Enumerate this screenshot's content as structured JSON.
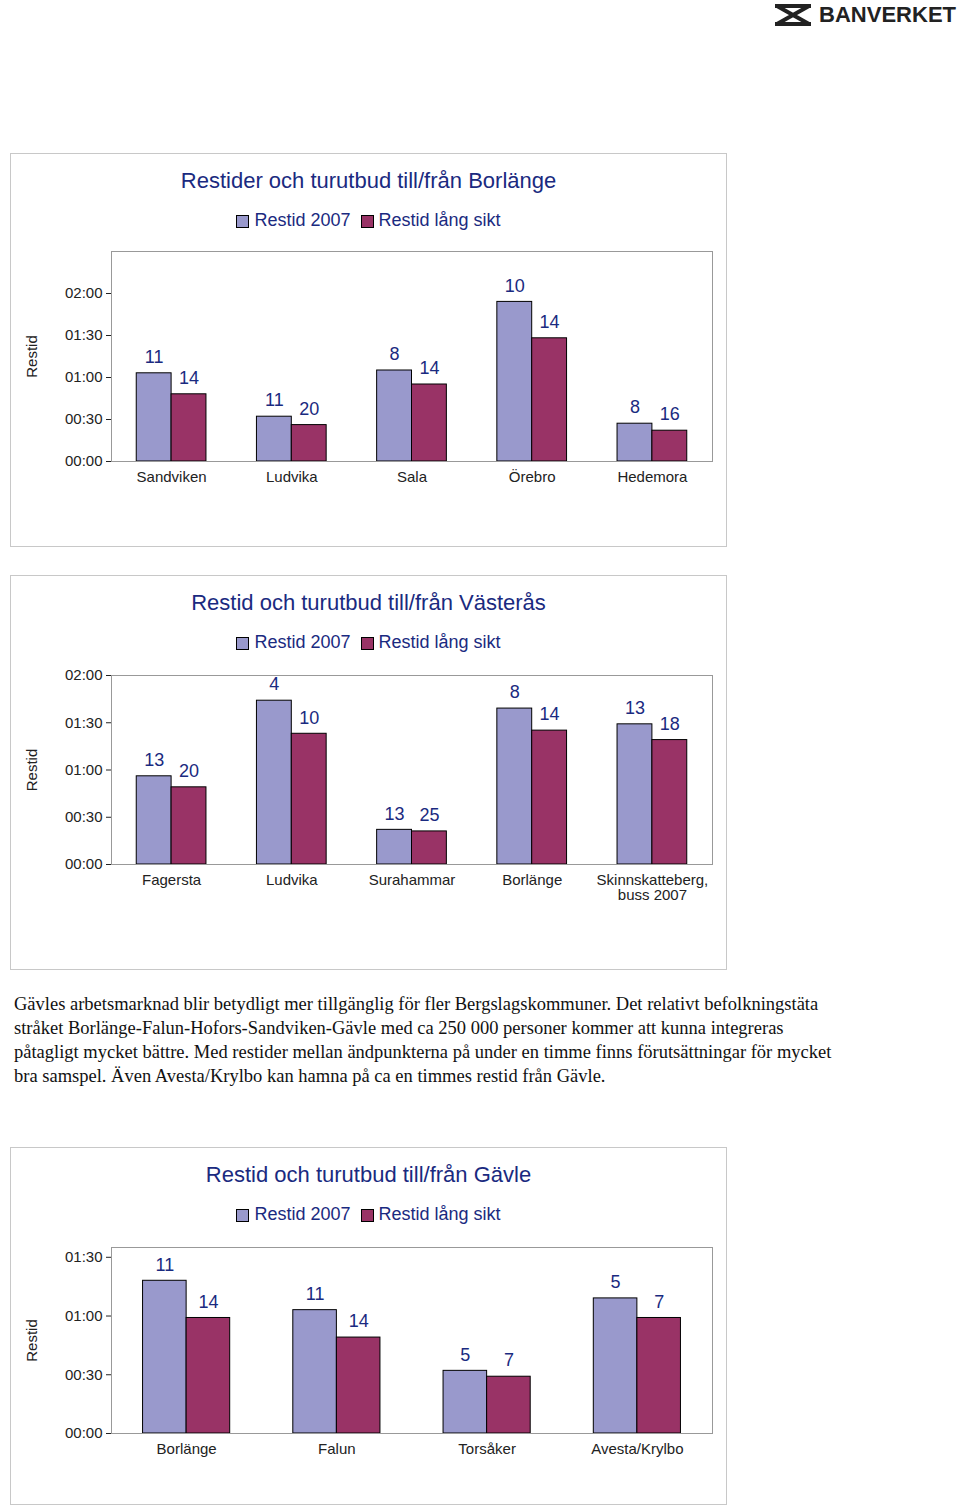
{
  "logo": "BANVERKET",
  "paragraph": "Gävles arbetsmarknad blir betydligt mer tillgänglig för fler Bergslagskommuner. Det relativt befolkningstäta stråket Borlänge-Falun-Hofors-Sandviken-Gävle med ca 250 000 personer kommer att kunna integreras påtagligt mycket bättre. Med restider mellan ändpunkterna på under en timme finns förutsättningar för mycket bra samspel. Även Avesta/Krylbo kan hamna på ca en timmes restid från Gävle.",
  "chart_data": [
    {
      "type": "bar",
      "title": "Restider och turutbud till/från Borlänge",
      "y_label": "Restid",
      "categories": [
        "Sandviken",
        "Ludvika",
        "Sala",
        "Örebro",
        "Hedemora"
      ],
      "series": [
        {
          "name": "Restid 2007",
          "color": "#9999cc",
          "values": [
            63,
            32,
            65,
            114,
            27
          ],
          "turutbud": [
            11,
            11,
            8,
            10,
            8
          ]
        },
        {
          "name": "Restid lång sikt",
          "color": "#993366",
          "values": [
            48,
            26,
            55,
            88,
            22
          ],
          "turutbud": [
            14,
            20,
            14,
            14,
            16
          ]
        }
      ],
      "ylim": [
        0,
        150
      ],
      "yticks": [
        {
          "value": 0,
          "label": "00:00"
        },
        {
          "value": 30,
          "label": "00:30"
        },
        {
          "value": 60,
          "label": "01:00"
        },
        {
          "value": 90,
          "label": "01:30"
        },
        {
          "value": 120,
          "label": "02:00"
        }
      ],
      "grid": false,
      "legend": "top"
    },
    {
      "type": "bar",
      "title": "Restid och turutbud till/från Västerås",
      "y_label": "Restid",
      "categories": [
        "Fagersta",
        "Ludvika",
        "Surahammar",
        "Borlänge",
        "Skinnskatteberg, buss 2007"
      ],
      "series": [
        {
          "name": "Restid 2007",
          "color": "#9999cc",
          "values": [
            56,
            104,
            22,
            99,
            89
          ],
          "turutbud": [
            13,
            4,
            13,
            8,
            13
          ]
        },
        {
          "name": "Restid lång sikt",
          "color": "#993366",
          "values": [
            49,
            83,
            21,
            85,
            79
          ],
          "turutbud": [
            20,
            10,
            25,
            14,
            18
          ]
        }
      ],
      "ylim": [
        0,
        120
      ],
      "yticks": [
        {
          "value": 0,
          "label": "00:00"
        },
        {
          "value": 30,
          "label": "00:30"
        },
        {
          "value": 60,
          "label": "01:00"
        },
        {
          "value": 90,
          "label": "01:30"
        },
        {
          "value": 120,
          "label": "02:00"
        }
      ],
      "grid": false,
      "legend": "top"
    },
    {
      "type": "bar",
      "title": "Restid och turutbud till/från Gävle",
      "y_label": "Restid",
      "categories": [
        "Borlänge",
        "Falun",
        "Torsåker",
        "Avesta/Krylbo"
      ],
      "series": [
        {
          "name": "Restid 2007",
          "color": "#9999cc",
          "values": [
            78,
            63,
            32,
            69
          ],
          "turutbud": [
            11,
            11,
            5,
            5
          ]
        },
        {
          "name": "Restid lång sikt",
          "color": "#993366",
          "values": [
            59,
            49,
            29,
            59
          ],
          "turutbud": [
            14,
            14,
            7,
            7
          ]
        }
      ],
      "ylim": [
        0,
        95
      ],
      "yticks": [
        {
          "value": 0,
          "label": "00:00"
        },
        {
          "value": 30,
          "label": "00:30"
        },
        {
          "value": 60,
          "label": "01:00"
        },
        {
          "value": 90,
          "label": "01:30"
        }
      ],
      "grid": false,
      "legend": "top"
    }
  ]
}
